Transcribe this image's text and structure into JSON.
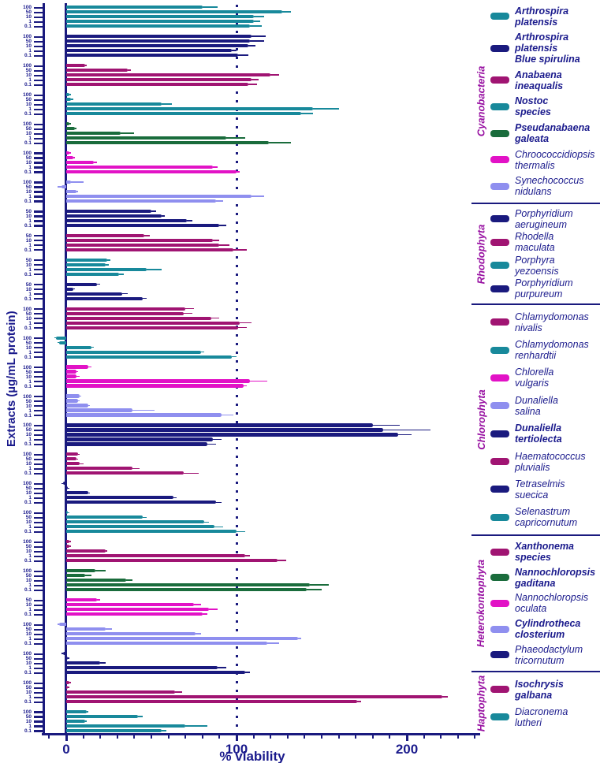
{
  "colors": {
    "teal": "#18899B",
    "navy": "#1A1A7E",
    "plum": "#A01472",
    "green": "#1A6C3C",
    "magenta": "#E212C6",
    "periwinkle": "#8F8FEF",
    "axis": "#1A1A7E",
    "text_navy": "#1A1A8C",
    "phylum_purple": "#9812A2"
  },
  "chart_data": {
    "type": "bar",
    "orientation": "horizontal",
    "xlabel": "% viability",
    "ylabel": "Extracts (µg/mL protein)",
    "xlim": [
      -15,
      242
    ],
    "x_major_ticks": [
      0,
      100,
      200
    ],
    "x_minor_tick_step": 10,
    "reference_line": {
      "x": 100,
      "style": "dotted"
    },
    "grid": false,
    "legend_position": "right",
    "groups": [
      {
        "phylum": "Cyanobacteria",
        "species": "Arthrospira platensis",
        "color": "teal",
        "concentrations": [
          "100",
          "50",
          "10",
          "1",
          "0.1"
        ],
        "values": [
          80,
          127,
          110,
          110,
          108
        ],
        "errors": [
          9,
          5,
          6,
          4,
          7
        ]
      },
      {
        "phylum": "Cyanobacteria",
        "species": "Arthrospira platensis Blue spirulina",
        "color": "navy",
        "concentrations": [
          "100",
          "50",
          "10",
          "1",
          "0.1"
        ],
        "values": [
          109,
          108,
          107,
          97,
          101
        ],
        "errors": [
          8,
          8,
          4,
          3,
          6
        ]
      },
      {
        "phylum": "Cyanobacteria",
        "species": "Anabaena ineaqualis",
        "color": "plum",
        "concentrations": [
          "100",
          "50",
          "10",
          "1",
          "0.1"
        ],
        "values": [
          11,
          36,
          120,
          109,
          107
        ],
        "errors": [
          1,
          2,
          5,
          4,
          5
        ]
      },
      {
        "phylum": "Cyanobacteria",
        "species": "Nostoc species",
        "color": "teal",
        "concentrations": [
          "100",
          "50",
          "10",
          "1",
          "0.1"
        ],
        "values": [
          2,
          3,
          56,
          145,
          138
        ],
        "errors": [
          1,
          1,
          6,
          15,
          7
        ]
      },
      {
        "phylum": "Cyanobacteria",
        "species": "Pseudanabaena galeata",
        "color": "green",
        "concentrations": [
          "100",
          "50",
          "10",
          "1",
          "0.1"
        ],
        "values": [
          2,
          5,
          32,
          94,
          119
        ],
        "errors": [
          1,
          1,
          8,
          11,
          13
        ]
      },
      {
        "phylum": "Cyanobacteria",
        "species": "Chroococcidiopsis thermalis",
        "color": "magenta",
        "concentrations": [
          "100",
          "50",
          "10",
          "1",
          "0.1"
        ],
        "values": [
          2,
          4,
          16,
          86,
          100
        ],
        "errors": [
          1,
          1,
          2,
          3,
          2
        ]
      },
      {
        "phylum": "Cyanobacteria",
        "species": "Synechococcus nidulans",
        "color": "periwinkle",
        "concentrations": [
          "100",
          "50",
          "10",
          "1",
          "0.1"
        ],
        "values": [
          3,
          -3,
          6,
          109,
          88
        ],
        "errors": [
          7,
          2,
          1,
          7,
          4
        ]
      },
      {
        "phylum": "Rhodophyta",
        "species": "Porphyridium aerugineum",
        "color": "navy",
        "concentrations": [
          "50",
          "10",
          "1",
          "0.1"
        ],
        "values": [
          50,
          56,
          71,
          90
        ],
        "errors": [
          3,
          2,
          3,
          4
        ]
      },
      {
        "phylum": "Rhodophyta",
        "species": "Rhodella maculata",
        "color": "plum",
        "concentrations": [
          "50",
          "10",
          "1",
          "0.1"
        ],
        "values": [
          46,
          86,
          90,
          98
        ],
        "errors": [
          3,
          4,
          6,
          8
        ]
      },
      {
        "phylum": "Rhodophyta",
        "species": "Porphyra yezoensis",
        "color": "teal",
        "concentrations": [
          "50",
          "10",
          "1",
          "0.1"
        ],
        "values": [
          24,
          23,
          47,
          31
        ],
        "errors": [
          2,
          2,
          9,
          3
        ]
      },
      {
        "phylum": "Rhodophyta",
        "species": "Porphyridium purpureum",
        "color": "navy",
        "concentrations": [
          "50",
          "10",
          "1",
          "0.1"
        ],
        "values": [
          18,
          4,
          33,
          45
        ],
        "errors": [
          2,
          1,
          3,
          2
        ]
      },
      {
        "phylum": "Chlorophyta",
        "species": "Chlamydomonas nivalis",
        "color": "plum",
        "concentrations": [
          "100",
          "50",
          "10",
          "1",
          "0.1"
        ],
        "values": [
          70,
          69,
          85,
          102,
          101
        ],
        "errors": [
          5,
          5,
          5,
          7,
          5
        ]
      },
      {
        "phylum": "Chlorophyta",
        "species": "Chlamydomonas renhardtii",
        "color": "teal",
        "concentrations": [
          "100",
          "50",
          "10",
          "1",
          "0.1"
        ],
        "values": [
          -6,
          -4,
          15,
          79,
          97
        ],
        "errors": [
          1,
          1,
          1,
          2,
          3
        ]
      },
      {
        "phylum": "Chlorophyta",
        "species": "Chlorella vulgaris",
        "color": "magenta",
        "concentrations": [
          "100",
          "50",
          "10",
          "1",
          "0.1"
        ],
        "values": [
          13,
          6,
          6,
          108,
          104
        ],
        "errors": [
          2,
          1,
          2,
          10,
          2
        ]
      },
      {
        "phylum": "Chlorophyta",
        "species": "Dunaliella salina",
        "color": "periwinkle",
        "concentrations": [
          "100",
          "50",
          "10",
          "1",
          "0.1"
        ],
        "values": [
          8,
          7,
          13,
          39,
          91
        ],
        "errors": [
          1,
          1,
          1,
          13,
          7
        ]
      },
      {
        "phylum": "Chlorophyta",
        "species": "Dunaliella tertiolecta",
        "color": "navy",
        "concentrations": [
          "100",
          "50",
          "10",
          "1",
          "0.1"
        ],
        "values": [
          180,
          186,
          195,
          86,
          83
        ],
        "errors": [
          16,
          28,
          8,
          5,
          5
        ]
      },
      {
        "phylum": "Chlorophyta",
        "species": "Haematococcus pluvialis",
        "color": "plum",
        "concentrations": [
          "100",
          "50",
          "10",
          "1",
          "0.1"
        ],
        "values": [
          7,
          6,
          8,
          39,
          69
        ],
        "errors": [
          1,
          1,
          2,
          4,
          9
        ]
      },
      {
        "phylum": "Chlorophyta",
        "species": "Tetraselmis suecica",
        "color": "navy",
        "concentrations": [
          "100",
          "50",
          "10",
          "1",
          "0.1"
        ],
        "values": [
          -2,
          1,
          13,
          63,
          88
        ],
        "errors": [
          1,
          1,
          1,
          2,
          3
        ]
      },
      {
        "phylum": "Chlorophyta",
        "species": "Selenastrum capricornutum",
        "color": "teal",
        "concentrations": [
          "100",
          "50",
          "10",
          "1",
          "0.1"
        ],
        "values": [
          1,
          45,
          81,
          87,
          100
        ],
        "errors": [
          1,
          2,
          3,
          5,
          5
        ]
      },
      {
        "phylum": "Heterokontophyta",
        "species": "Xanthonema species",
        "color": "plum",
        "concentrations": [
          "100",
          "50",
          "10",
          "1",
          "0.1"
        ],
        "values": [
          2,
          2,
          23,
          105,
          124
        ],
        "errors": [
          1,
          1,
          1,
          3,
          5
        ]
      },
      {
        "phylum": "Heterokontophyta",
        "species": "Nannochloropsis gaditana",
        "color": "green",
        "concentrations": [
          "100",
          "50",
          "10",
          "1",
          "0.1"
        ],
        "values": [
          17,
          11,
          35,
          143,
          141
        ],
        "errors": [
          6,
          4,
          4,
          11,
          9
        ]
      },
      {
        "phylum": "Heterokontophyta",
        "species": "Nannochloropsis oculata",
        "color": "magenta",
        "concentrations": [
          "50",
          "10",
          "1",
          "0.1"
        ],
        "values": [
          18,
          75,
          84,
          80
        ],
        "errors": [
          2,
          4,
          5,
          3
        ]
      },
      {
        "phylum": "Heterokontophyta",
        "species": "Cylindrotheca closterium",
        "color": "periwinkle",
        "concentrations": [
          "100",
          "50",
          "10",
          "1",
          "0.1"
        ],
        "values": [
          -4,
          23,
          76,
          136,
          118
        ],
        "errors": [
          1,
          4,
          3,
          2,
          7
        ]
      },
      {
        "phylum": "Heterokontophyta",
        "species": "Phaeodactylum tricornutum",
        "color": "navy",
        "concentrations": [
          "100",
          "50",
          "10",
          "1",
          "0.1"
        ],
        "values": [
          -2,
          1,
          20,
          89,
          105
        ],
        "errors": [
          1,
          1,
          3,
          5,
          3
        ]
      },
      {
        "phylum": "Haptophyta",
        "species": "Isochrysis galbana",
        "color": "plum",
        "concentrations": [
          "100",
          "50",
          "10",
          "1",
          "0.1"
        ],
        "values": [
          2,
          1,
          64,
          221,
          171
        ],
        "errors": [
          1,
          1,
          4,
          3,
          2
        ]
      },
      {
        "phylum": "Haptophyta",
        "species": "Diacronema lutheri",
        "color": "teal",
        "concentrations": [
          "100",
          "50",
          "10",
          "1",
          "0.1"
        ],
        "values": [
          12,
          42,
          11,
          70,
          56
        ],
        "errors": [
          1,
          3,
          1,
          13,
          3
        ]
      }
    ]
  },
  "legend": {
    "sections": [
      {
        "phylum": "Cyanobacteria",
        "items": [
          {
            "label_lines": [
              "Arthrospira",
              "platensis"
            ],
            "bold": true,
            "color": "teal"
          },
          {
            "label_lines": [
              "Arthrospira",
              "platensis",
              "Blue spirulina"
            ],
            "bold": true,
            "color": "navy"
          },
          {
            "label_lines": [
              "Anabaena",
              "ineaqualis"
            ],
            "bold": true,
            "color": "plum"
          },
          {
            "label_lines": [
              "Nostoc",
              "species"
            ],
            "bold": true,
            "color": "teal"
          },
          {
            "label_lines": [
              "Pseudanabaena",
              "galeata"
            ],
            "bold": true,
            "color": "green"
          },
          {
            "label_lines": [
              "Chroococcidiopsis",
              " thermalis"
            ],
            "bold": false,
            "color": "magenta"
          },
          {
            "label_lines": [
              "Synechococcus",
              " nidulans"
            ],
            "bold": false,
            "color": "periwinkle"
          }
        ]
      },
      {
        "phylum": "Rhodophyta",
        "items": [
          {
            "label_lines": [
              "Porphyridium",
              "aerugineum"
            ],
            "bold": false,
            "color": "navy"
          },
          {
            "label_lines": [
              "Rhodella",
              " maculata"
            ],
            "bold": false,
            "color": "plum"
          },
          {
            "label_lines": [
              "Porphyra",
              "yezoensis"
            ],
            "bold": false,
            "color": "teal"
          },
          {
            "label_lines": [
              "Porphyridium",
              "purpureum"
            ],
            "bold": false,
            "color": "navy"
          }
        ]
      },
      {
        "phylum": "Chlorophyta",
        "items": [
          {
            "label_lines": [
              "Chlamydomonas",
              " nivalis"
            ],
            "bold": false,
            "color": "plum"
          },
          {
            "label_lines": [
              "Chlamydomonas",
              "renhardtii"
            ],
            "bold": false,
            "color": "teal"
          },
          {
            "label_lines": [
              "Chlorella",
              "vulgaris"
            ],
            "bold": false,
            "color": "magenta"
          },
          {
            "label_lines": [
              "Dunaliella",
              "salina"
            ],
            "bold": false,
            "color": "periwinkle"
          },
          {
            "label_lines": [
              "Dunaliella",
              " tertiolecta"
            ],
            "bold": true,
            "color": "navy"
          },
          {
            "label_lines": [
              "Haematococcus",
              " pluvialis"
            ],
            "bold": false,
            "color": "plum"
          },
          {
            "label_lines": [
              "Tetraselmis",
              "suecica"
            ],
            "bold": false,
            "color": "navy"
          },
          {
            "label_lines": [
              "Selenastrum",
              "capricornutum"
            ],
            "bold": false,
            "color": "teal"
          }
        ]
      },
      {
        "phylum": "Heterokontophyta",
        "items": [
          {
            "label_lines": [
              "Xanthonema",
              "species"
            ],
            "bold": true,
            "color": "plum"
          },
          {
            "label_lines": [
              "Nannochloropsis",
              "gaditana"
            ],
            "bold": true,
            "color": "green"
          },
          {
            "label_lines": [
              "Nannochloropsis",
              "oculata"
            ],
            "bold": false,
            "color": "magenta"
          },
          {
            "label_lines": [
              "Cylindrotheca",
              "closterium"
            ],
            "bold": true,
            "color": "periwinkle"
          },
          {
            "label_lines": [
              "Phaeodactylum",
              "tricornutum"
            ],
            "bold": false,
            "color": "navy"
          }
        ]
      },
      {
        "phylum": "Haptophyta",
        "items": [
          {
            "label_lines": [
              "Isochrysis",
              " galbana"
            ],
            "bold": true,
            "color": "plum"
          },
          {
            "label_lines": [
              "Diacronema",
              "lutheri"
            ],
            "bold": false,
            "color": "teal"
          }
        ]
      }
    ]
  }
}
